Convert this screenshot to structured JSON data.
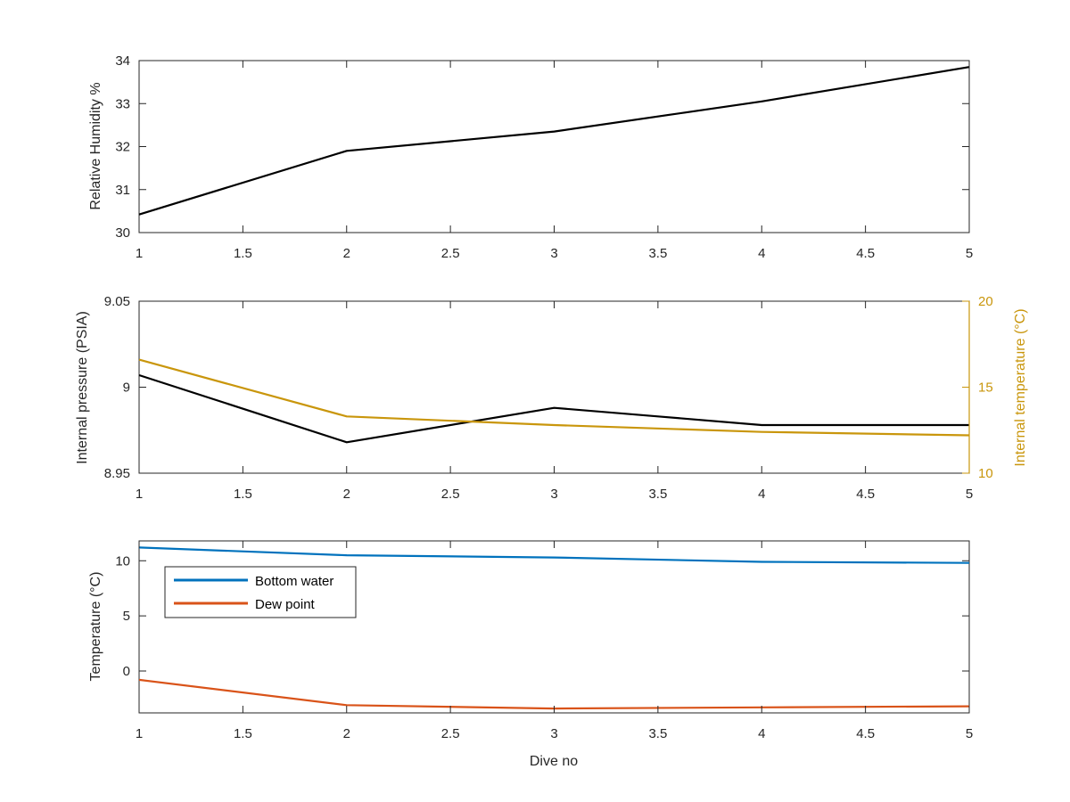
{
  "colors": {
    "rh_line": "#000000",
    "pressure_line": "#000000",
    "temp_internal_line": "#C9960C",
    "bottom_water_line": "#0072BD",
    "dew_point_line": "#D95319",
    "internal_temp_axis": "#C9960C"
  },
  "chart_data": [
    {
      "type": "line",
      "title": "",
      "xlabel": "",
      "ylabel": "Relative Humidity %",
      "xlim": [
        1,
        5
      ],
      "ylim": [
        30,
        34
      ],
      "xticks": [
        "1",
        "1.5",
        "2",
        "2.5",
        "3",
        "3.5",
        "4",
        "4.5",
        "5"
      ],
      "yticks": [
        "30",
        "31",
        "32",
        "33",
        "34"
      ],
      "grid": true,
      "series": [
        {
          "x": [
            1,
            2,
            3,
            4,
            5
          ],
          "values": [
            30.42,
            31.9,
            32.35,
            33.05,
            33.85
          ]
        }
      ]
    },
    {
      "type": "line",
      "title": "",
      "xlabel": "",
      "ylabel": "Internal pressure (PSIA)",
      "ylabel_right": "Internal temperature (°C)",
      "xlim": [
        1,
        5
      ],
      "ylim": [
        8.95,
        9.05
      ],
      "ylim_right": [
        10,
        20
      ],
      "xticks": [
        "1",
        "1.5",
        "2",
        "2.5",
        "3",
        "3.5",
        "4",
        "4.5",
        "5"
      ],
      "yticks": [
        "8.95",
        "9",
        "9.05"
      ],
      "yticks_right": [
        "10",
        "15",
        "20"
      ],
      "grid": true,
      "series": [
        {
          "axis": "left",
          "x": [
            1,
            2,
            3,
            3.5,
            4,
            5
          ],
          "values": [
            9.007,
            8.968,
            8.988,
            8.983,
            8.978,
            8.978
          ]
        },
        {
          "axis": "right",
          "x": [
            1,
            2,
            3,
            4,
            5
          ],
          "values": [
            16.6,
            13.3,
            12.8,
            12.4,
            12.2
          ]
        }
      ]
    },
    {
      "type": "line",
      "title": "",
      "xlabel": "Dive no",
      "ylabel": "Temperature (°C)",
      "xlim": [
        1,
        5
      ],
      "ylim": [
        -3.8,
        11.8
      ],
      "xticks": [
        "1",
        "1.5",
        "2",
        "2.5",
        "3",
        "3.5",
        "4",
        "4.5",
        "5"
      ],
      "yticks": [
        "0",
        "5",
        "10"
      ],
      "grid": true,
      "legend_position": "top-left",
      "series": [
        {
          "name": "Bottom water",
          "x": [
            1,
            2,
            3,
            4,
            5
          ],
          "values": [
            11.2,
            10.5,
            10.3,
            9.9,
            9.8
          ]
        },
        {
          "name": "Dew point",
          "x": [
            1,
            2,
            3,
            4,
            5
          ],
          "values": [
            -0.8,
            -3.1,
            -3.4,
            -3.3,
            -3.2
          ]
        }
      ]
    }
  ]
}
